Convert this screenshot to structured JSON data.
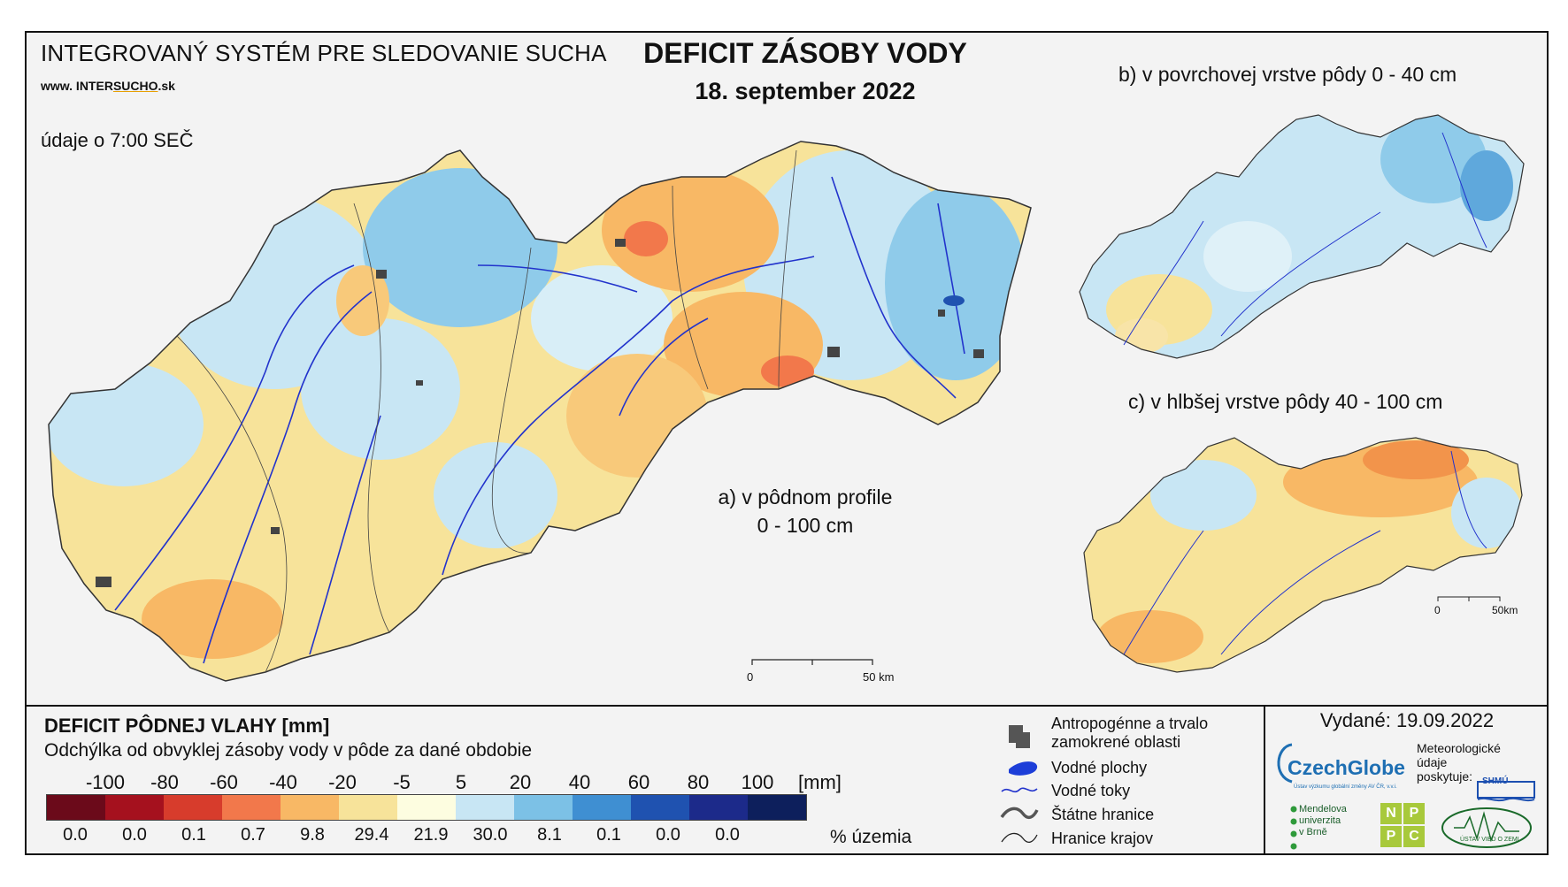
{
  "header": {
    "system_title": "INTEGROVANÝ SYSTÉM PRE SLEDOVANIE SUCHA",
    "url_prefix": "www. INTER",
    "url_underline": "SUCHO",
    "url_suffix": ".sk",
    "time_note": "údaje o 7:00 SEČ",
    "main_title": "DEFICIT ZÁSOBY VODY",
    "main_date": "18. september 2022"
  },
  "maps": {
    "a_label_line1": "a) v pôdnom profile",
    "a_label_line2": "0 - 100 cm",
    "b_label": "b) v povrchovej vrstve pôdy 0 - 40 cm",
    "c_label": "c) v hlbšej vrstve pôdy 40 - 100 cm",
    "scale_a": {
      "zero": "0",
      "end": "50 km"
    },
    "scale_c": {
      "zero": "0",
      "end": "50km"
    }
  },
  "legend": {
    "title": "DEFICIT PÔDNEJ VLAHY [mm]",
    "subtitle": "Odchýlka od obvyklej zásoby vody v pôde za dané obdobie",
    "ticks": [
      "-100",
      "-80",
      "-60",
      "-40",
      "-20",
      "-5",
      "5",
      "20",
      "40",
      "60",
      "80",
      "100"
    ],
    "unit": "[mm]",
    "colors": [
      "#6b0a1a",
      "#a5111e",
      "#d73c2c",
      "#f2784b",
      "#f8b865",
      "#f7e39a",
      "#fdfde0",
      "#c8e6f4",
      "#7cc1e6",
      "#3f8fd2",
      "#1f52b0",
      "#1c2a8a",
      "#0d1f5c"
    ],
    "percents": [
      "0.0",
      "0.0",
      "0.1",
      "0.7",
      "9.8",
      "29.4",
      "21.9",
      "30.0",
      "8.1",
      "0.1",
      "0.0",
      "0.0"
    ],
    "percent_unit": "% územia"
  },
  "symbols": {
    "anthro_line1": "Antropogénne a trvalo",
    "anthro_line2": "zamokrené oblasti",
    "water_bodies": "Vodné plochy",
    "rivers": "Vodné toky",
    "state_border": "Štátne hranice",
    "region_border": "Hranice krajov"
  },
  "footer": {
    "issued": "Vydané: 19.09.2022",
    "meteo_line1": "Meteorologické",
    "meteo_line2": "údaje",
    "meteo_line3": "poskytuje:",
    "czechglobe": "CzechGlobe",
    "czechglobe_sub": "Ústav výzkumu globální změny AV ČR, v.v.i.",
    "mendel_line1": "Mendelova",
    "mendel_line2": "univerzita",
    "mendel_line3": "v Brně",
    "nppc": [
      "N",
      "P",
      "P",
      "C"
    ],
    "uvz": "ÚSTAV VIED O ZEMI",
    "shmu": "SHMÚ"
  }
}
